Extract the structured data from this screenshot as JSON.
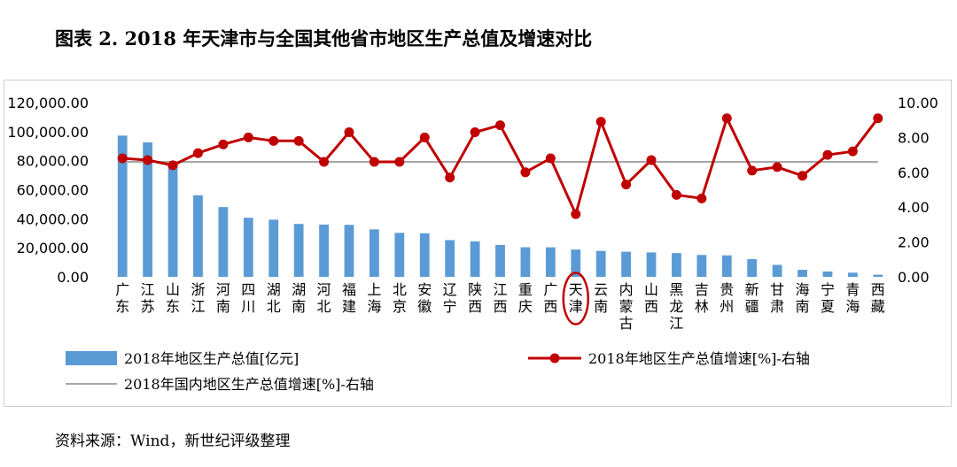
{
  "title": "图表 2. 2018 年天津市与全国其他省市地区生产总值及增速对比",
  "source": "资料来源：Wind，新世纪评级整理",
  "colors": {
    "bar": "#5b9bd5",
    "line": "#c00000",
    "reference": "#a6a6a6",
    "highlight": "#c00000"
  },
  "chart_data": {
    "type": "bar+line",
    "categories": [
      "广东",
      "江苏",
      "山东",
      "浙江",
      "河南",
      "四川",
      "湖北",
      "湖南",
      "河北",
      "福建",
      "上海",
      "北京",
      "安徽",
      "辽宁",
      "陕西",
      "江西",
      "重庆",
      "广西",
      "天津",
      "云南",
      "内蒙古",
      "山西",
      "黑龙江",
      "吉林",
      "贵州",
      "新疆",
      "甘肃",
      "海南",
      "宁夏",
      "青海",
      "西藏"
    ],
    "highlight_category": "天津",
    "y_left": {
      "ylim": [
        0,
        120000
      ],
      "ticks": [
        "0.00",
        "20,000.00",
        "40,000.00",
        "60,000.00",
        "80,000.00",
        "100,000.00",
        "120,000.00"
      ]
    },
    "y_right": {
      "ylim": [
        0,
        10
      ],
      "ticks": [
        "0.00",
        "2.00",
        "4.00",
        "6.00",
        "8.00",
        "10.00"
      ]
    },
    "series": [
      {
        "name": "2018年地区生产总值[亿元]",
        "type": "bar",
        "axis": "left",
        "values": [
          97278,
          92595,
          76470,
          56197,
          48056,
          40678,
          39366,
          36426,
          36010,
          35804,
          32680,
          30320,
          30007,
          25315,
          24438,
          21985,
          20363,
          20353,
          18810,
          17881,
          17289,
          16818,
          16362,
          15075,
          14806,
          12199,
          8246,
          4832,
          3705,
          2865,
          1478
        ]
      },
      {
        "name": "2018年地区生产总值增速[%]-右轴",
        "type": "line",
        "axis": "right",
        "values": [
          6.8,
          6.7,
          6.4,
          7.1,
          7.6,
          8.0,
          7.8,
          7.8,
          6.6,
          8.3,
          6.6,
          6.6,
          8.0,
          5.7,
          8.3,
          8.7,
          6.0,
          6.8,
          3.6,
          8.9,
          5.3,
          6.7,
          4.7,
          4.5,
          9.1,
          6.1,
          6.3,
          5.8,
          7.0,
          7.2,
          9.1
        ]
      },
      {
        "name": "2018年国内地区生产总值增速[%]-右轴",
        "type": "reference-line",
        "axis": "right",
        "value": 6.6
      }
    ],
    "legend": "bottom",
    "grid": false
  }
}
